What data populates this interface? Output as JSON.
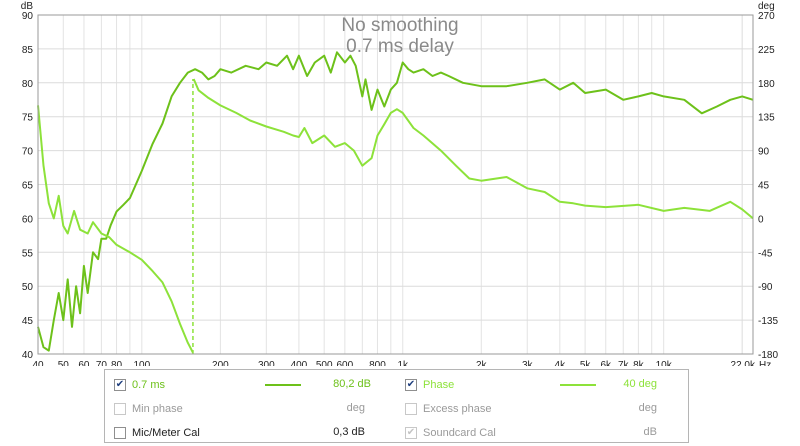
{
  "chart_data": {
    "type": "line",
    "title": "No smoothing",
    "subtitle": "0.7 ms delay",
    "xlabel": "Hz",
    "x_scale": "log",
    "xlim": [
      40,
      22000
    ],
    "ylabel": "dB",
    "ylim": [
      40,
      90
    ],
    "y2label": "deg",
    "y2lim": [
      -180,
      270
    ],
    "grid": true,
    "x_ticks": [
      {
        "v": 40,
        "t": "40"
      },
      {
        "v": 50,
        "t": "50"
      },
      {
        "v": 60,
        "t": "60"
      },
      {
        "v": 70,
        "t": "70"
      },
      {
        "v": 80,
        "t": "80"
      },
      {
        "v": 100,
        "t": "100"
      },
      {
        "v": 200,
        "t": "200"
      },
      {
        "v": 300,
        "t": "300"
      },
      {
        "v": 400,
        "t": "400"
      },
      {
        "v": 500,
        "t": "500"
      },
      {
        "v": 600,
        "t": "600"
      },
      {
        "v": 800,
        "t": "800"
      },
      {
        "v": 1000,
        "t": "1k"
      },
      {
        "v": 2000,
        "t": "2k"
      },
      {
        "v": 3000,
        "t": "3k"
      },
      {
        "v": 4000,
        "t": "4k"
      },
      {
        "v": 5000,
        "t": "5k"
      },
      {
        "v": 6000,
        "t": "6k"
      },
      {
        "v": 7000,
        "t": "7k"
      },
      {
        "v": 8000,
        "t": "8k"
      },
      {
        "v": 10000,
        "t": "10k"
      },
      {
        "v": 22000,
        "t": "22,0k"
      }
    ],
    "y_ticks": [
      90,
      85,
      80,
      75,
      70,
      65,
      60,
      55,
      50,
      45,
      40
    ],
    "y2_ticks": [
      270,
      225,
      180,
      135,
      90,
      45,
      0,
      -45,
      -90,
      -135,
      -180
    ],
    "series": [
      {
        "name": "0.7 ms",
        "axis": "left",
        "color": "#6dc11a",
        "points": [
          [
            40,
            44
          ],
          [
            42,
            41
          ],
          [
            44,
            40.5
          ],
          [
            46,
            45
          ],
          [
            48,
            49
          ],
          [
            50,
            45
          ],
          [
            52,
            51
          ],
          [
            54,
            44
          ],
          [
            56,
            50
          ],
          [
            58,
            46
          ],
          [
            60,
            53
          ],
          [
            62,
            49
          ],
          [
            65,
            55
          ],
          [
            68,
            54
          ],
          [
            70,
            57
          ],
          [
            73,
            57
          ],
          [
            76,
            59
          ],
          [
            80,
            61
          ],
          [
            85,
            62
          ],
          [
            90,
            63
          ],
          [
            100,
            67
          ],
          [
            110,
            71
          ],
          [
            120,
            74
          ],
          [
            130,
            78
          ],
          [
            140,
            80
          ],
          [
            150,
            81.5
          ],
          [
            160,
            82
          ],
          [
            170,
            81.5
          ],
          [
            180,
            80.5
          ],
          [
            190,
            81
          ],
          [
            200,
            82
          ],
          [
            220,
            81.5
          ],
          [
            250,
            82.5
          ],
          [
            280,
            82
          ],
          [
            300,
            83
          ],
          [
            330,
            82.5
          ],
          [
            360,
            84
          ],
          [
            380,
            82
          ],
          [
            400,
            84
          ],
          [
            430,
            81
          ],
          [
            460,
            83
          ],
          [
            500,
            84
          ],
          [
            530,
            81.5
          ],
          [
            560,
            84.5
          ],
          [
            600,
            83
          ],
          [
            630,
            84
          ],
          [
            660,
            82.5
          ],
          [
            700,
            78
          ],
          [
            720,
            80.5
          ],
          [
            760,
            76
          ],
          [
            800,
            79
          ],
          [
            850,
            76.5
          ],
          [
            900,
            79
          ],
          [
            950,
            80
          ],
          [
            1000,
            83
          ],
          [
            1050,
            82
          ],
          [
            1100,
            81.5
          ],
          [
            1200,
            82
          ],
          [
            1300,
            81
          ],
          [
            1400,
            81.5
          ],
          [
            1500,
            81
          ],
          [
            1700,
            80
          ],
          [
            2000,
            79.5
          ],
          [
            2500,
            79.5
          ],
          [
            3000,
            80
          ],
          [
            3500,
            80.5
          ],
          [
            4000,
            79
          ],
          [
            4500,
            80
          ],
          [
            5000,
            78.5
          ],
          [
            6000,
            79
          ],
          [
            7000,
            77.5
          ],
          [
            8000,
            78
          ],
          [
            9000,
            78.5
          ],
          [
            10000,
            78
          ],
          [
            12000,
            77.5
          ],
          [
            14000,
            75.5
          ],
          [
            16000,
            76.5
          ],
          [
            18000,
            77.5
          ],
          [
            20000,
            78
          ],
          [
            22000,
            77.5
          ]
        ]
      },
      {
        "name": "Phase",
        "axis": "right",
        "color": "#8de23a",
        "points": [
          [
            40,
            150
          ],
          [
            42,
            70
          ],
          [
            44,
            20
          ],
          [
            46,
            0
          ],
          [
            48,
            30
          ],
          [
            50,
            -10
          ],
          [
            52,
            -20
          ],
          [
            55,
            10
          ],
          [
            58,
            -15
          ],
          [
            62,
            -20
          ],
          [
            65,
            -5
          ],
          [
            70,
            -20
          ],
          [
            75,
            -25
          ],
          [
            80,
            -35
          ],
          [
            90,
            -45
          ],
          [
            100,
            -55
          ],
          [
            110,
            -70
          ],
          [
            120,
            -85
          ],
          [
            130,
            -110
          ],
          [
            140,
            -140
          ],
          [
            150,
            -165
          ],
          [
            157,
            -178
          ],
          [
            158,
            185
          ],
          [
            165,
            170
          ],
          [
            180,
            160
          ],
          [
            200,
            150
          ],
          [
            230,
            140
          ],
          [
            260,
            130
          ],
          [
            300,
            122
          ],
          [
            350,
            115
          ],
          [
            380,
            110
          ],
          [
            400,
            108
          ],
          [
            420,
            120
          ],
          [
            450,
            100
          ],
          [
            500,
            110
          ],
          [
            550,
            95
          ],
          [
            600,
            100
          ],
          [
            650,
            90
          ],
          [
            700,
            70
          ],
          [
            760,
            80
          ],
          [
            800,
            110
          ],
          [
            850,
            125
          ],
          [
            900,
            140
          ],
          [
            950,
            145
          ],
          [
            1000,
            140
          ],
          [
            1100,
            120
          ],
          [
            1200,
            110
          ],
          [
            1400,
            90
          ],
          [
            1600,
            70
          ],
          [
            1800,
            53
          ],
          [
            2000,
            50
          ],
          [
            2500,
            55
          ],
          [
            3000,
            40
          ],
          [
            3500,
            35
          ],
          [
            4000,
            22
          ],
          [
            4500,
            20
          ],
          [
            5000,
            17
          ],
          [
            6000,
            15
          ],
          [
            8000,
            18
          ],
          [
            10000,
            10
          ],
          [
            12000,
            14
          ],
          [
            15000,
            10
          ],
          [
            18000,
            22
          ],
          [
            20000,
            12
          ],
          [
            22000,
            0
          ]
        ]
      }
    ]
  },
  "legend": {
    "row1": {
      "name": "0.7 ms",
      "value": "80,2 dB",
      "checked": true,
      "color": "#6dc11a"
    },
    "row1b": {
      "name": "Phase",
      "value": "40 deg",
      "checked": true,
      "color": "#8de23a"
    },
    "row2": {
      "name": "Min phase",
      "value": "deg",
      "checked": false
    },
    "row2b": {
      "name": "Excess phase",
      "value": "deg",
      "checked": false
    },
    "row3": {
      "name": "Mic/Meter Cal",
      "value": "0,3 dB",
      "checked": false
    },
    "row3b": {
      "name": "Soundcard Cal",
      "value": "dB",
      "checked": true
    }
  }
}
